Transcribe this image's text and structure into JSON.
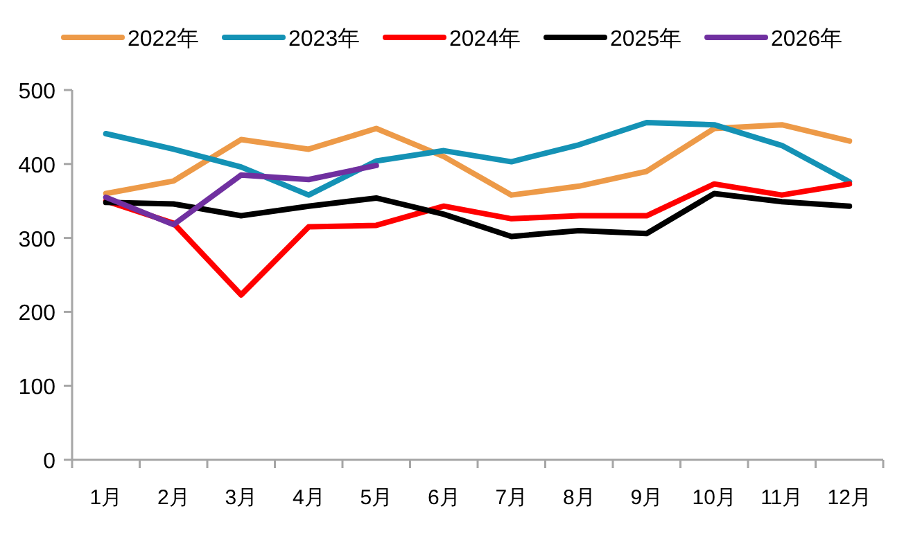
{
  "chart_data": {
    "type": "line",
    "categories": [
      "1月",
      "2月",
      "3月",
      "4月",
      "5月",
      "6月",
      "7月",
      "8月",
      "9月",
      "10月",
      "11月",
      "12月"
    ],
    "series": [
      {
        "name": "2022年",
        "color": "#ed9a48",
        "values": [
          360,
          377,
          433,
          420,
          448,
          410,
          358,
          370,
          390,
          448,
          453,
          431
        ]
      },
      {
        "name": "2023年",
        "color": "#1492b5",
        "values": [
          441,
          420,
          396,
          358,
          404,
          418,
          403,
          426,
          456,
          453,
          425,
          376
        ]
      },
      {
        "name": "2024年",
        "color": "#ff0000",
        "values": [
          350,
          320,
          223,
          315,
          317,
          343,
          326,
          330,
          330,
          373,
          358,
          373
        ]
      },
      {
        "name": "2025年",
        "color": "#000000",
        "values": [
          348,
          346,
          330,
          343,
          354,
          332,
          302,
          310,
          306,
          360,
          349,
          343
        ]
      },
      {
        "name": "2026年",
        "color": "#7030a0",
        "values": [
          355,
          318,
          385,
          379,
          398,
          null,
          null,
          null,
          null,
          null,
          null,
          null
        ]
      }
    ],
    "ylim": [
      0,
      500
    ],
    "yticks": [
      0,
      100,
      200,
      300,
      400,
      500
    ],
    "legend": "top",
    "grid": false,
    "marker": "none",
    "line_style": "solid"
  }
}
